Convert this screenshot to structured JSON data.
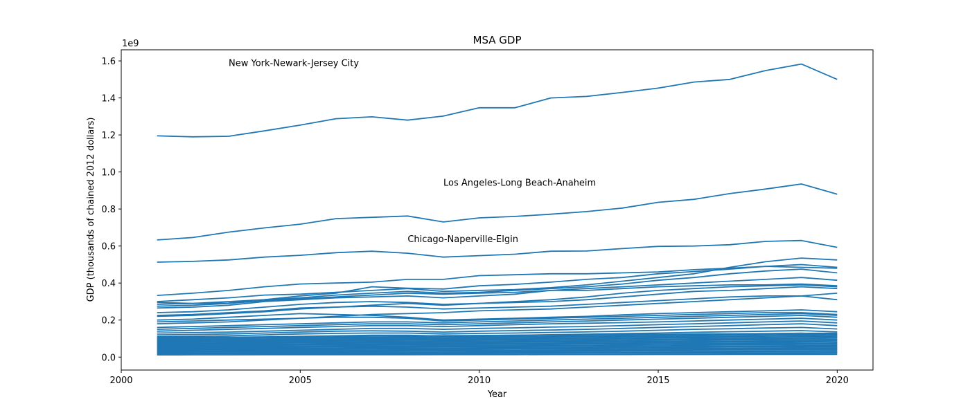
{
  "chart_data": {
    "type": "line",
    "title": "MSA GDP",
    "xlabel": "Year",
    "ylabel": "GDP (thousands of chained 2012 dollars)",
    "y_offset_text": "1e9",
    "y_multiplier": 1000000000,
    "xlim": [
      2000,
      2021
    ],
    "ylim": [
      -0.07,
      1.66
    ],
    "x_ticks": [
      2000,
      2005,
      2010,
      2015,
      2020
    ],
    "y_ticks": [
      0.0,
      0.2,
      0.4,
      0.6,
      0.8,
      1.0,
      1.2,
      1.4,
      1.6
    ],
    "y_tick_labels": [
      "0.0",
      "0.2",
      "0.4",
      "0.6",
      "0.8",
      "1.0",
      "1.2",
      "1.4",
      "1.6"
    ],
    "grid": false,
    "line_color": "#1f77b4",
    "x": [
      2001,
      2002,
      2003,
      2004,
      2005,
      2006,
      2007,
      2008,
      2009,
      2010,
      2011,
      2012,
      2013,
      2014,
      2015,
      2016,
      2017,
      2018,
      2019,
      2020
    ],
    "annotations": [
      {
        "text": "New York-Newark-Jersey City",
        "x": 2003,
        "y": 1.59
      },
      {
        "text": "Los Angeles-Long Beach-Anaheim",
        "x": 2009,
        "y": 0.945
      },
      {
        "text": "Chicago-Naperville-Elgin",
        "x": 2008,
        "y": 0.64
      }
    ],
    "series": [
      {
        "name": "New York-Newark-Jersey City",
        "values": [
          1.195,
          1.19,
          1.193,
          1.222,
          1.253,
          1.288,
          1.298,
          1.28,
          1.302,
          1.347,
          1.347,
          1.4,
          1.408,
          1.43,
          1.453,
          1.486,
          1.5,
          1.548,
          1.583,
          1.5
        ]
      },
      {
        "name": "Los Angeles-Long Beach-Anaheim",
        "values": [
          0.633,
          0.646,
          0.675,
          0.698,
          0.718,
          0.748,
          0.755,
          0.762,
          0.73,
          0.752,
          0.76,
          0.772,
          0.786,
          0.805,
          0.836,
          0.852,
          0.883,
          0.908,
          0.935,
          0.88
        ]
      },
      {
        "name": "Chicago-Naperville-Elgin",
        "values": [
          0.513,
          0.517,
          0.525,
          0.54,
          0.55,
          0.564,
          0.572,
          0.561,
          0.54,
          0.548,
          0.556,
          0.572,
          0.573,
          0.586,
          0.598,
          0.6,
          0.607,
          0.625,
          0.63,
          0.593
        ]
      },
      {
        "values": [
          0.333,
          0.345,
          0.36,
          0.38,
          0.395,
          0.4,
          0.405,
          0.42,
          0.42,
          0.44,
          0.445,
          0.45,
          0.45,
          0.455,
          0.46,
          0.472,
          0.48,
          0.49,
          0.5,
          0.485
        ]
      },
      {
        "values": [
          0.3,
          0.31,
          0.32,
          0.335,
          0.34,
          0.35,
          0.36,
          0.37,
          0.355,
          0.36,
          0.365,
          0.375,
          0.39,
          0.41,
          0.43,
          0.45,
          0.485,
          0.515,
          0.535,
          0.525
        ]
      },
      {
        "values": [
          0.295,
          0.29,
          0.3,
          0.31,
          0.33,
          0.345,
          0.38,
          0.372,
          0.368,
          0.385,
          0.393,
          0.405,
          0.42,
          0.43,
          0.45,
          0.462,
          0.475,
          0.49,
          0.485,
          0.48
        ]
      },
      {
        "values": [
          0.285,
          0.29,
          0.292,
          0.31,
          0.32,
          0.335,
          0.345,
          0.355,
          0.345,
          0.35,
          0.36,
          0.37,
          0.38,
          0.395,
          0.415,
          0.43,
          0.45,
          0.465,
          0.475,
          0.455
        ]
      },
      {
        "values": [
          0.275,
          0.28,
          0.29,
          0.305,
          0.315,
          0.325,
          0.335,
          0.345,
          0.34,
          0.345,
          0.35,
          0.36,
          0.37,
          0.38,
          0.39,
          0.4,
          0.41,
          0.42,
          0.43,
          0.415
        ]
      },
      {
        "values": [
          0.265,
          0.27,
          0.28,
          0.3,
          0.31,
          0.32,
          0.325,
          0.33,
          0.32,
          0.33,
          0.34,
          0.36,
          0.36,
          0.37,
          0.38,
          0.385,
          0.39,
          0.39,
          0.395,
          0.385
        ]
      },
      {
        "values": [
          0.225,
          0.23,
          0.24,
          0.25,
          0.265,
          0.27,
          0.28,
          0.29,
          0.28,
          0.29,
          0.3,
          0.31,
          0.325,
          0.345,
          0.36,
          0.37,
          0.38,
          0.385,
          0.39,
          0.38
        ]
      },
      {
        "values": [
          0.24,
          0.245,
          0.255,
          0.27,
          0.285,
          0.295,
          0.3,
          0.295,
          0.285,
          0.29,
          0.295,
          0.3,
          0.31,
          0.325,
          0.34,
          0.355,
          0.36,
          0.37,
          0.38,
          0.37
        ]
      },
      {
        "values": [
          0.22,
          0.225,
          0.235,
          0.245,
          0.26,
          0.27,
          0.275,
          0.27,
          0.26,
          0.265,
          0.27,
          0.275,
          0.285,
          0.295,
          0.305,
          0.315,
          0.325,
          0.33,
          0.33,
          0.31
        ]
      },
      {
        "values": [
          0.18,
          0.185,
          0.19,
          0.2,
          0.21,
          0.22,
          0.23,
          0.235,
          0.24,
          0.25,
          0.255,
          0.26,
          0.27,
          0.28,
          0.29,
          0.3,
          0.31,
          0.32,
          0.33,
          0.345
        ]
      },
      {
        "values": [
          0.2,
          0.205,
          0.215,
          0.225,
          0.235,
          0.23,
          0.225,
          0.215,
          0.2,
          0.205,
          0.21,
          0.215,
          0.22,
          0.228,
          0.235,
          0.24,
          0.245,
          0.25,
          0.255,
          0.245
        ]
      },
      {
        "values": [
          0.19,
          0.195,
          0.2,
          0.205,
          0.21,
          0.215,
          0.215,
          0.21,
          0.195,
          0.2,
          0.205,
          0.21,
          0.215,
          0.22,
          0.225,
          0.23,
          0.235,
          0.24,
          0.24,
          0.23
        ]
      },
      {
        "values": [
          0.16,
          0.165,
          0.17,
          0.175,
          0.18,
          0.185,
          0.19,
          0.19,
          0.185,
          0.19,
          0.195,
          0.2,
          0.205,
          0.21,
          0.215,
          0.22,
          0.225,
          0.23,
          0.235,
          0.225
        ]
      },
      {
        "values": [
          0.15,
          0.155,
          0.16,
          0.165,
          0.17,
          0.175,
          0.18,
          0.18,
          0.175,
          0.18,
          0.185,
          0.19,
          0.195,
          0.2,
          0.205,
          0.21,
          0.215,
          0.22,
          0.225,
          0.215
        ]
      },
      {
        "values": [
          0.14,
          0.145,
          0.15,
          0.155,
          0.16,
          0.165,
          0.17,
          0.17,
          0.165,
          0.17,
          0.175,
          0.18,
          0.183,
          0.186,
          0.19,
          0.195,
          0.2,
          0.205,
          0.21,
          0.2
        ]
      },
      {
        "values": [
          0.13,
          0.132,
          0.135,
          0.14,
          0.145,
          0.15,
          0.155,
          0.155,
          0.15,
          0.155,
          0.158,
          0.162,
          0.165,
          0.17,
          0.175,
          0.18,
          0.185,
          0.19,
          0.195,
          0.185
        ]
      },
      {
        "values": [
          0.12,
          0.122,
          0.125,
          0.13,
          0.135,
          0.14,
          0.142,
          0.14,
          0.135,
          0.14,
          0.143,
          0.146,
          0.15,
          0.155,
          0.16,
          0.165,
          0.17,
          0.175,
          0.18,
          0.17
        ]
      },
      {
        "values": [
          0.11,
          0.112,
          0.115,
          0.12,
          0.125,
          0.128,
          0.13,
          0.13,
          0.125,
          0.128,
          0.13,
          0.133,
          0.136,
          0.14,
          0.145,
          0.15,
          0.153,
          0.157,
          0.16,
          0.152
        ]
      },
      {
        "values": [
          0.1,
          0.102,
          0.105,
          0.108,
          0.112,
          0.115,
          0.118,
          0.118,
          0.114,
          0.116,
          0.118,
          0.121,
          0.124,
          0.127,
          0.13,
          0.134,
          0.137,
          0.14,
          0.143,
          0.136
        ]
      },
      {
        "values": [
          0.09,
          0.092,
          0.094,
          0.097,
          0.1,
          0.103,
          0.106,
          0.106,
          0.102,
          0.104,
          0.106,
          0.108,
          0.111,
          0.114,
          0.117,
          0.12,
          0.123,
          0.126,
          0.129,
          0.122
        ]
      },
      {
        "values": [
          0.08,
          0.081,
          0.083,
          0.086,
          0.089,
          0.092,
          0.094,
          0.094,
          0.091,
          0.093,
          0.095,
          0.097,
          0.099,
          0.101,
          0.104,
          0.107,
          0.11,
          0.113,
          0.115,
          0.109
        ]
      },
      {
        "values": [
          0.07,
          0.071,
          0.073,
          0.075,
          0.078,
          0.08,
          0.082,
          0.082,
          0.079,
          0.081,
          0.083,
          0.085,
          0.087,
          0.089,
          0.091,
          0.093,
          0.095,
          0.097,
          0.1,
          0.094
        ]
      },
      {
        "values": [
          0.06,
          0.061,
          0.062,
          0.064,
          0.066,
          0.068,
          0.07,
          0.07,
          0.068,
          0.069,
          0.07,
          0.072,
          0.074,
          0.076,
          0.078,
          0.08,
          0.082,
          0.084,
          0.086,
          0.081
        ]
      },
      {
        "values": [
          0.05,
          0.051,
          0.052,
          0.054,
          0.056,
          0.057,
          0.059,
          0.059,
          0.057,
          0.058,
          0.059,
          0.06,
          0.062,
          0.064,
          0.065,
          0.067,
          0.069,
          0.071,
          0.073,
          0.069
        ]
      },
      {
        "values": [
          0.04,
          0.041,
          0.042,
          0.043,
          0.045,
          0.046,
          0.047,
          0.047,
          0.046,
          0.047,
          0.048,
          0.049,
          0.05,
          0.051,
          0.052,
          0.054,
          0.055,
          0.057,
          0.058,
          0.055
        ]
      },
      {
        "values": [
          0.03,
          0.031,
          0.031,
          0.032,
          0.033,
          0.034,
          0.035,
          0.035,
          0.034,
          0.035,
          0.036,
          0.037,
          0.038,
          0.039,
          0.04,
          0.041,
          0.042,
          0.043,
          0.044,
          0.042
        ]
      },
      {
        "values": [
          0.02,
          0.02,
          0.021,
          0.021,
          0.022,
          0.022,
          0.023,
          0.023,
          0.022,
          0.023,
          0.023,
          0.024,
          0.024,
          0.025,
          0.026,
          0.026,
          0.027,
          0.028,
          0.028,
          0.027
        ]
      }
    ]
  }
}
